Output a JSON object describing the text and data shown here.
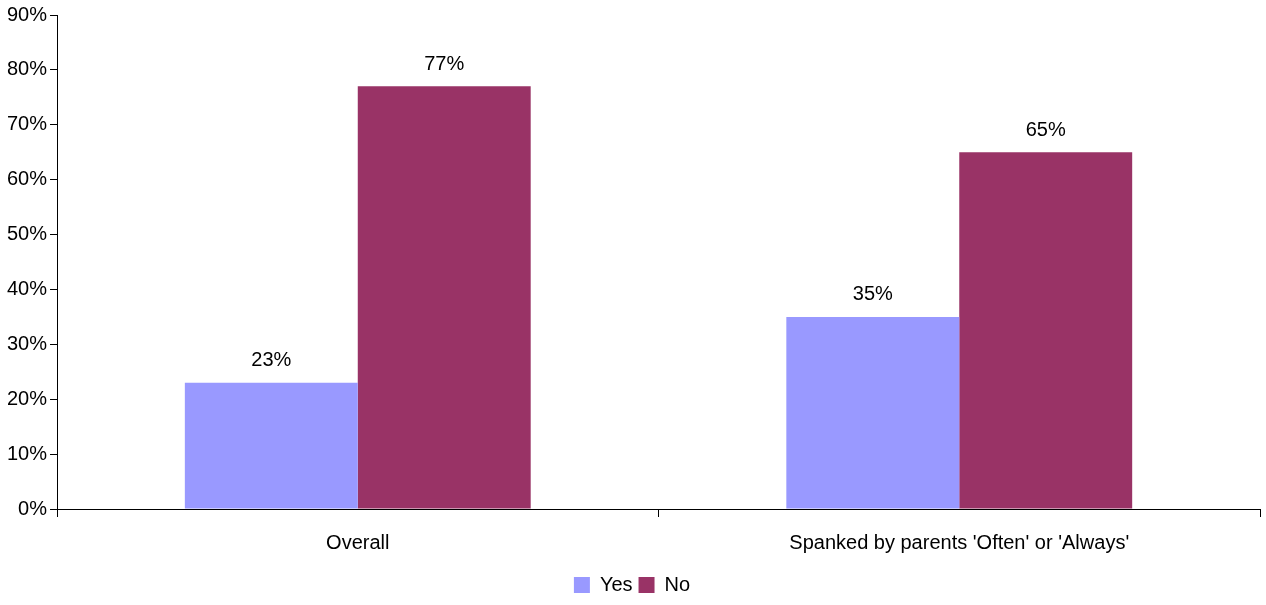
{
  "chart_data": {
    "type": "bar",
    "categories": [
      "Overall",
      "Spanked by parents 'Often' or 'Always'"
    ],
    "series": [
      {
        "name": "Yes",
        "color": "#9999ff",
        "values": [
          23,
          35
        ],
        "value_labels": [
          "23%",
          "35%"
        ]
      },
      {
        "name": "No",
        "color": "#993366",
        "values": [
          77,
          65
        ],
        "value_labels": [
          "77%",
          "65%"
        ]
      }
    ],
    "ylim": [
      0,
      90
    ],
    "yticks": [
      {
        "value": 0,
        "label": "0%"
      },
      {
        "value": 10,
        "label": "10%"
      },
      {
        "value": 20,
        "label": "20%"
      },
      {
        "value": 30,
        "label": "30%"
      },
      {
        "value": 40,
        "label": "40%"
      },
      {
        "value": 50,
        "label": "50%"
      },
      {
        "value": 60,
        "label": "60%"
      },
      {
        "value": 70,
        "label": "70%"
      },
      {
        "value": 80,
        "label": "80%"
      },
      {
        "value": 90,
        "label": "90%"
      }
    ],
    "grid": false,
    "legend": "bottom"
  }
}
